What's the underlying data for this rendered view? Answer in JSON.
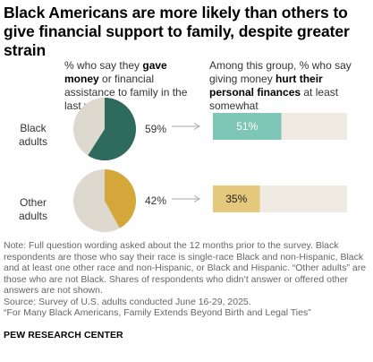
{
  "title": "Black Americans are more likely than others to give financial support to family, despite greater strain",
  "header_left": {
    "pre": "% who say they ",
    "bold": "gave money",
    "post": " or financial assistance to family in the last year"
  },
  "header_right": {
    "pre": "Among this group, % who say giving money ",
    "bold": "hurt their personal finances",
    "post": " at least somewhat"
  },
  "chart_data": {
    "type": "pie",
    "title": "Black Americans are more likely than others to give financial support to family, despite greater strain",
    "categories": [
      "Black adults",
      "Other adults"
    ],
    "series": [
      {
        "name": "gave money or financial assistance to family in the last year",
        "values": [
          59,
          42
        ],
        "labels": [
          "59%",
          "42%"
        ]
      },
      {
        "name": "giving money hurt their personal finances at least somewhat",
        "values": [
          51,
          35
        ],
        "labels": [
          "51%",
          "35%"
        ]
      }
    ],
    "colors": {
      "black_adults_pie": "#2e6b5d",
      "other_adults_pie": "#d4a73a",
      "pie_remainder": "#ddd9cf",
      "black_adults_bar": "#7ec6b5",
      "other_adults_bar": "#e6c87c",
      "bar_background": "#efebe2",
      "arrow": "#aaaaaa"
    }
  },
  "notes": {
    "note": "Note: Full question wording asked about the 12 months prior to the survey. Black respondents are those who say their race is single-race Black and non-Hispanic, Black and at least one other race and non-Hispanic, or Black and Hispanic. “Other adults” are those who are not Black. Shares of respondents who didn’t answer or offered other answers are not shown.",
    "source": "Source: Survey of U.S. adults conducted June 16-29, 2025.",
    "report": "“For Many Black Americans, Family Extends Beyond Birth and Legal Ties”"
  },
  "brand": "PEW RESEARCH CENTER"
}
